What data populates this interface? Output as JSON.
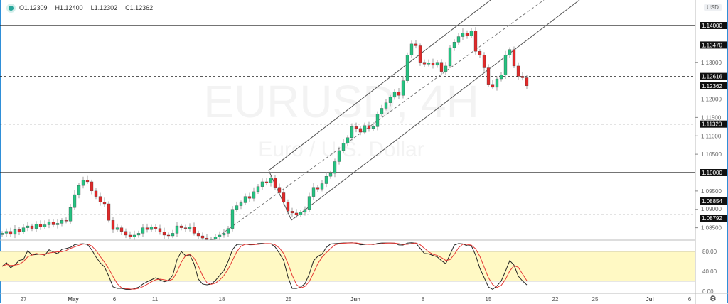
{
  "legend": {
    "open": "O1.12309",
    "high": "H1.12400",
    "low": "L1.12302",
    "close": "C1.12362"
  },
  "watermark": {
    "symbol": "EURUSD, 4H",
    "name": "Euro / U.S. Dollar"
  },
  "currency_button": "USD",
  "settings_icon": "gear-icon",
  "colors": {
    "up": "#26c281",
    "down": "#e02a2a",
    "stoch_k": "#222222",
    "stoch_d": "#e53935",
    "band": "#fff9c4",
    "accent": "#2f8fd8"
  },
  "price_axis": {
    "ticks": [
      "1.13000",
      "1.12000",
      "1.11500",
      "1.11000",
      "1.10500",
      "1.09500",
      "1.09000",
      "1.08500"
    ],
    "tick_values": [
      1.13,
      1.12,
      1.115,
      1.11,
      1.105,
      1.095,
      1.09,
      1.085
    ]
  },
  "price_levels": [
    {
      "value": 1.14,
      "label": "1.14000",
      "style": "solid"
    },
    {
      "value": 1.1347,
      "label": "1.13470",
      "style": "dashed"
    },
    {
      "value": 1.12616,
      "label": "1.12616",
      "style": "dashed"
    },
    {
      "value": 1.12362,
      "label": "1.12362",
      "style": "current"
    },
    {
      "value": 1.1132,
      "label": "1.11320",
      "style": "dashed"
    },
    {
      "value": 1.1,
      "label": "1.10000",
      "style": "solid"
    },
    {
      "value": 1.08854,
      "label": "1.08854",
      "style": "dashed"
    },
    {
      "value": 1.08792,
      "label": "1.08792",
      "style": "dashed"
    }
  ],
  "stoch_axis": {
    "ticks": [
      "80.00",
      "40.00",
      "0.00"
    ],
    "tick_values": [
      80,
      40,
      0
    ],
    "band": [
      20,
      80
    ]
  },
  "time_axis": [
    "27",
    "May",
    "6",
    "11",
    "18",
    "25",
    "Jun",
    "8",
    "15",
    "22",
    "25",
    "Jul",
    "6"
  ],
  "chart_data": {
    "type": "candlestick",
    "closes": [
      1.0835,
      1.084,
      1.0832,
      1.0845,
      1.0838,
      1.085,
      1.0855,
      1.0848,
      1.086,
      1.0852,
      1.0858,
      1.0865,
      1.0858,
      1.0862,
      1.087,
      1.0868,
      1.0905,
      1.094,
      1.0965,
      1.098,
      1.0975,
      1.095,
      1.0935,
      1.092,
      1.0915,
      1.087,
      1.0845,
      1.085,
      1.084,
      1.083,
      1.0825,
      1.083,
      1.0835,
      1.085,
      1.0845,
      1.0852,
      1.0848,
      1.0838,
      1.083,
      1.0828,
      1.0835,
      1.0855,
      1.085,
      1.0848,
      1.0852,
      1.0835,
      1.0828,
      1.0822,
      1.0818,
      1.082,
      1.0825,
      1.083,
      1.0835,
      1.0848,
      1.09,
      1.091,
      1.0918,
      1.0935,
      1.093,
      1.0948,
      1.0962,
      1.0975,
      1.0972,
      1.0985,
      1.096,
      1.0945,
      1.092,
      1.0895,
      1.089,
      1.0885,
      1.0892,
      1.09,
      1.0935,
      1.096,
      1.0955,
      1.097,
      1.099,
      1.0998,
      1.103,
      1.106,
      1.108,
      1.1095,
      1.1125,
      1.112,
      1.111,
      1.1128,
      1.112,
      1.1125,
      1.116,
      1.1175,
      1.119,
      1.1205,
      1.122,
      1.121,
      1.125,
      1.132,
      1.135,
      1.1345,
      1.13,
      1.1295,
      1.1298,
      1.1292,
      1.13,
      1.1275,
      1.129,
      1.134,
      1.1355,
      1.137,
      1.138,
      1.1372,
      1.1385,
      1.133,
      1.132,
      1.1285,
      1.124,
      1.1232,
      1.1255,
      1.1265,
      1.132,
      1.1335,
      1.129,
      1.1262,
      1.1258,
      1.1236
    ]
  }
}
